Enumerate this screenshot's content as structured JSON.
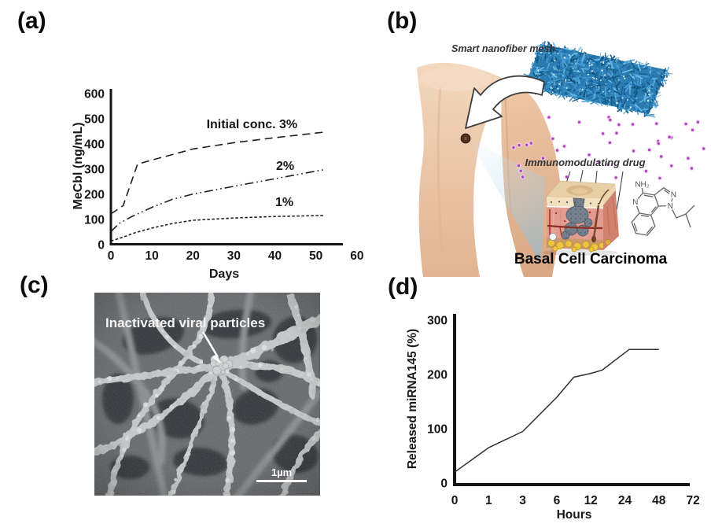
{
  "figure": {
    "panels": {
      "a": {
        "tag": "(a)"
      },
      "b": {
        "tag": "(b)",
        "mesh_label": "Smart nanofiber mesh",
        "drug_label": "Immunomodulating drug",
        "caption": "Basal Cell Carcinoma",
        "chem_labels": {
          "amine": "NH₂",
          "n_pyridine": "N",
          "n_imidazole_3": "N",
          "n_imidazole_1": "N"
        }
      },
      "c": {
        "tag": "(c)",
        "annotation": "Inactivated viral particles",
        "scale_bar_label": "1µm"
      },
      "d": {
        "tag": "(d)"
      }
    }
  },
  "colors": {
    "axis": "#1a1a1a",
    "curve": "#2b2b2b",
    "mesh_blue": "#2b7ab0",
    "drug_dot_core": "#b33fc6",
    "drug_dot_halo": "#eed7f1",
    "skin": "#ecc9ad",
    "sem_background": "#606265",
    "sem_fiber": "#c2c4c5"
  },
  "chart_data": [
    {
      "id": "chart-a",
      "type": "line",
      "title": "",
      "xlabel": "Days",
      "ylabel": "MeCbl (ng/mL)",
      "xlim": [
        0,
        60
      ],
      "ylim": [
        0,
        600
      ],
      "x_ticks": [
        0,
        10,
        20,
        30,
        40,
        50,
        60
      ],
      "y_ticks": [
        0,
        100,
        200,
        300,
        400,
        500,
        600
      ],
      "grid": false,
      "legend_position": "inline-annotations",
      "series": [
        {
          "name": "Initial conc. 3%",
          "dash": "long-dash",
          "points": [
            [
              0,
              122
            ],
            [
              3,
              155
            ],
            [
              6.5,
              320
            ],
            [
              10,
              336
            ],
            [
              20,
              380
            ],
            [
              30,
              405
            ],
            [
              40,
              425
            ],
            [
              52,
              447
            ]
          ]
        },
        {
          "name": "2%",
          "dash": "dash-dot-dot",
          "points": [
            [
              0,
              52
            ],
            [
              2,
              84
            ],
            [
              5,
              111
            ],
            [
              10,
              148
            ],
            [
              15,
              180
            ],
            [
              20,
              201
            ],
            [
              30,
              232
            ],
            [
              40,
              262
            ],
            [
              52,
              298
            ]
          ]
        },
        {
          "name": "1%",
          "dash": "short-dash",
          "points": [
            [
              0,
              14
            ],
            [
              3,
              30
            ],
            [
              6,
              48
            ],
            [
              10,
              66
            ],
            [
              15,
              84
            ],
            [
              20,
              97
            ],
            [
              30,
              106
            ],
            [
              40,
              112
            ],
            [
              52,
              116
            ]
          ]
        }
      ],
      "annotations": [
        {
          "text": "Initial conc. 3%",
          "x": 34.4,
          "y": 478
        },
        {
          "text": "2%",
          "x": 42.5,
          "y": 312
        },
        {
          "text": "1%",
          "x": 42.3,
          "y": 169
        }
      ]
    },
    {
      "id": "chart-d",
      "type": "line",
      "title": "",
      "xlabel": "Hours",
      "ylabel": "Released miRNA145 (%)",
      "x_scale": "categorical",
      "x_ticks": [
        0,
        1,
        3,
        6,
        12,
        24,
        48,
        72
      ],
      "y_ticks": [
        0,
        100,
        200,
        300
      ],
      "ylim": [
        0,
        300
      ],
      "grid": false,
      "series": [
        {
          "name": "Released miRNA145",
          "dash": "solid",
          "points": [
            [
              0,
              20
            ],
            [
              1,
              65
            ],
            [
              3,
              95
            ],
            [
              6,
              158
            ],
            [
              9,
              195
            ],
            [
              12,
              202
            ],
            [
              16,
              208
            ],
            [
              27,
              246
            ],
            [
              48,
              246
            ]
          ]
        }
      ],
      "annotations": []
    }
  ]
}
